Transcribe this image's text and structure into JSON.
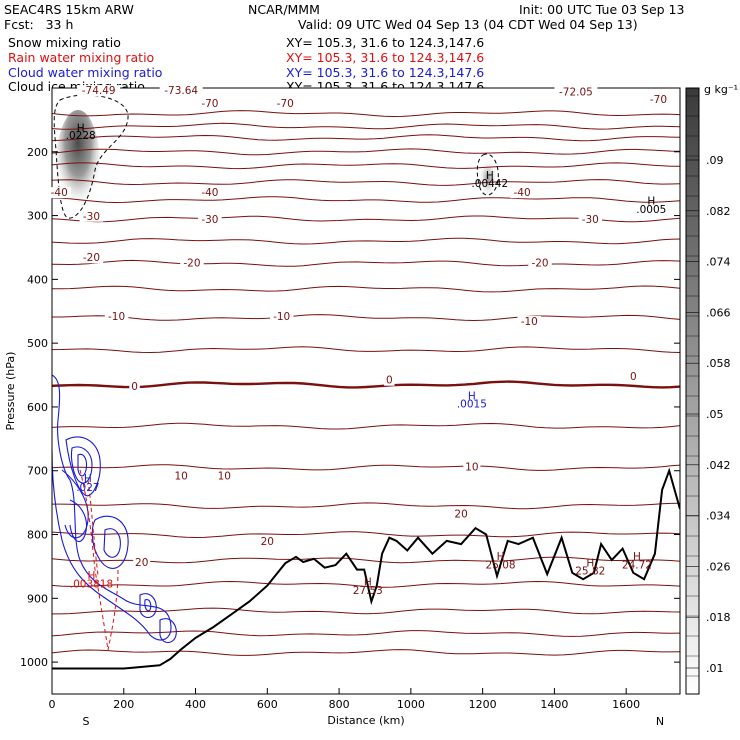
{
  "header": {
    "left1": "SEAC4RS 15km ARW",
    "left2": "Fcst:   33 h",
    "center1": "NCAR/MMM",
    "right1": "Init: 00 UTC Tue 03 Sep 13",
    "right2": "Valid: 09 UTC Wed 04 Sep 13 (04 CDT Wed 04 Sep 13)",
    "fields": [
      {
        "label": "Snow mixing ratio",
        "xy": "XY= 105.3, 31.6 to 124.3,147.6",
        "color": "#000000"
      },
      {
        "label": "Rain water mixing ratio",
        "xy": "XY= 105.3, 31.6 to 124.3,147.6",
        "color": "#e01010"
      },
      {
        "label": "Cloud water mixing ratio",
        "xy": "XY= 105.3, 31.6 to 124.3,147.6",
        "color": "#1a1ad8"
      },
      {
        "label": "Cloud ice mixing ratio",
        "xy": "XY= 105.3, 31.6 to 124.3,147.6",
        "color": "#000000"
      }
    ]
  },
  "chart_data": {
    "type": "contour",
    "xlabel": "Distance (km)",
    "ylabel": "Pressure (hPa)",
    "xlim": [
      0,
      1750
    ],
    "ylim": [
      1050,
      100
    ],
    "x_ticks": [
      0,
      200,
      400,
      600,
      800,
      1000,
      1200,
      1400,
      1600
    ],
    "y_ticks": [
      200,
      300,
      400,
      500,
      600,
      700,
      800,
      900,
      1000
    ],
    "x_end_labels": [
      "S",
      "N"
    ],
    "colorbar": {
      "unit": "g kg⁻¹",
      "ticks": [
        ".01",
        ".018",
        ".026",
        ".034",
        ".042",
        ".05",
        ".058",
        ".066",
        ".074",
        ".082",
        ".09"
      ]
    },
    "temperature_contour_labels": [
      {
        "x": 20,
        "p": 268,
        "text": "-40"
      },
      {
        "x": 440,
        "p": 268,
        "text": "-40"
      },
      {
        "x": 1310,
        "p": 268,
        "text": "-40"
      },
      {
        "x": 110,
        "p": 305,
        "text": "-30"
      },
      {
        "x": 440,
        "p": 310,
        "text": "-30"
      },
      {
        "x": 1500,
        "p": 310,
        "text": "-30"
      },
      {
        "x": 110,
        "p": 370,
        "text": "-20"
      },
      {
        "x": 390,
        "p": 378,
        "text": "-20"
      },
      {
        "x": 1360,
        "p": 378,
        "text": "-20"
      },
      {
        "x": 180,
        "p": 462,
        "text": "-10"
      },
      {
        "x": 640,
        "p": 462,
        "text": "-10"
      },
      {
        "x": 1330,
        "p": 470,
        "text": "-10"
      },
      {
        "x": 230,
        "p": 572,
        "text": "0"
      },
      {
        "x": 940,
        "p": 562,
        "text": "0"
      },
      {
        "x": 1620,
        "p": 556,
        "text": "0"
      },
      {
        "x": 360,
        "p": 712,
        "text": "10"
      },
      {
        "x": 480,
        "p": 712,
        "text": "10"
      },
      {
        "x": 1170,
        "p": 698,
        "text": "10"
      },
      {
        "x": 1140,
        "p": 772,
        "text": "20"
      },
      {
        "x": 600,
        "p": 815,
        "text": "20"
      },
      {
        "x": 250,
        "p": 848,
        "text": "20"
      },
      {
        "x": 130,
        "p": 108,
        "text": "-74.49"
      },
      {
        "x": 360,
        "p": 108,
        "text": "-73.64"
      },
      {
        "x": 440,
        "p": 128,
        "text": "-70"
      },
      {
        "x": 650,
        "p": 128,
        "text": "-70"
      },
      {
        "x": 1690,
        "p": 122,
        "text": "-70"
      },
      {
        "x": 1460,
        "p": 110,
        "text": "-72.05"
      }
    ],
    "extrema_labels": [
      {
        "x": 1220,
        "p": 243,
        "text": "H",
        "color": "#000000"
      },
      {
        "x": 1220,
        "p": 255,
        "text": ".00442",
        "color": "#000000"
      },
      {
        "x": 80,
        "p": 168,
        "text": "H",
        "color": "#000000"
      },
      {
        "x": 80,
        "p": 180,
        "text": ".0228",
        "color": "#000000"
      },
      {
        "x": 1670,
        "p": 283,
        "text": "H",
        "color": "#000000"
      },
      {
        "x": 1670,
        "p": 296,
        "text": ".0005",
        "color": "#000000"
      },
      {
        "x": 1170,
        "p": 588,
        "text": "H",
        "color": "#1a1ad8"
      },
      {
        "x": 1170,
        "p": 601,
        "text": ".0015",
        "color": "#1a1ad8"
      },
      {
        "x": 100,
        "p": 718,
        "text": "H",
        "color": "#1a1ad8"
      },
      {
        "x": 100,
        "p": 732,
        "text": ".027",
        "color": "#1a1ad8"
      },
      {
        "x": 110,
        "p": 870,
        "text": "H",
        "color": "#e01010"
      },
      {
        "x": 110,
        "p": 883,
        "text": ".003818",
        "color": "#e01010"
      },
      {
        "x": 1250,
        "p": 840,
        "text": "H",
        "color": "#7a1010"
      },
      {
        "x": 1250,
        "p": 853,
        "text": "25.08",
        "color": "#7a1010"
      },
      {
        "x": 1500,
        "p": 850,
        "text": "H",
        "color": "#7a1010"
      },
      {
        "x": 1500,
        "p": 863,
        "text": "25.82",
        "color": "#7a1010"
      },
      {
        "x": 1630,
        "p": 840,
        "text": "H",
        "color": "#7a1010"
      },
      {
        "x": 1630,
        "p": 853,
        "text": "24.72",
        "color": "#7a1010"
      },
      {
        "x": 880,
        "p": 880,
        "text": "H",
        "color": "#7a1010"
      },
      {
        "x": 880,
        "p": 893,
        "text": "27.53",
        "color": "#7a1010"
      }
    ],
    "terrain": {
      "x": [
        0,
        100,
        200,
        300,
        330,
        360,
        400,
        450,
        500,
        550,
        600,
        650,
        680,
        700,
        730,
        760,
        790,
        820,
        850,
        870,
        890,
        905,
        920,
        940,
        960,
        990,
        1020,
        1060,
        1100,
        1140,
        1180,
        1210,
        1240,
        1270,
        1300,
        1340,
        1380,
        1420,
        1450,
        1480,
        1510,
        1530,
        1560,
        1590,
        1620,
        1650,
        1680,
        1700,
        1720,
        1740,
        1750
      ],
      "p": [
        1010,
        1010,
        1010,
        1005,
        995,
        980,
        962,
        945,
        925,
        905,
        880,
        845,
        835,
        843,
        838,
        852,
        848,
        830,
        855,
        855,
        905,
        880,
        830,
        805,
        810,
        825,
        805,
        830,
        810,
        815,
        790,
        800,
        865,
        810,
        815,
        805,
        862,
        805,
        860,
        870,
        860,
        815,
        840,
        822,
        860,
        870,
        830,
        730,
        700,
        740,
        760
      ]
    },
    "isotherm_pressures": [
      140,
      160,
      178,
      200,
      222,
      248,
      275,
      305,
      340,
      375,
      415,
      460,
      510,
      565,
      630,
      695,
      755,
      800,
      840,
      878,
      920,
      955,
      985
    ]
  }
}
